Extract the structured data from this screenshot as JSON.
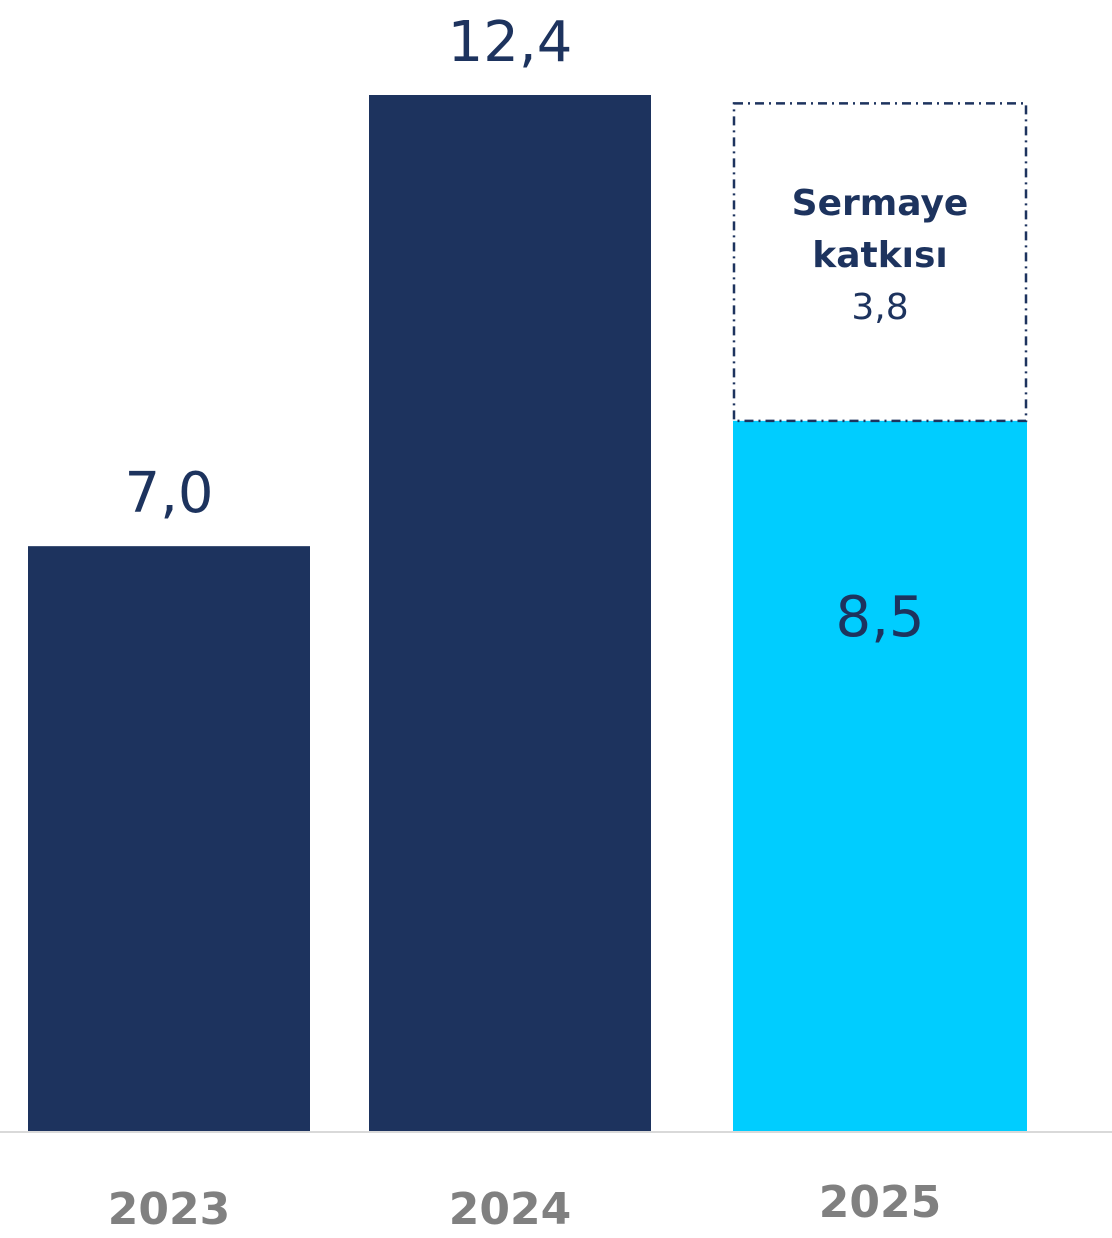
{
  "chart_data": {
    "type": "bar",
    "categories": [
      "2023",
      "2024",
      "2025"
    ],
    "values": [
      7.0,
      12.4,
      8.5
    ],
    "value_labels": [
      "7,0",
      "12,4",
      "8,5"
    ],
    "stacked_extra": {
      "category": "2025",
      "value": 3.8,
      "label_lines": [
        "Sermaye",
        "katkısı",
        "3,8"
      ]
    },
    "ylim": [
      0,
      12.4
    ],
    "grid": false,
    "colors": {
      "main_bar": "#1d335e",
      "highlight_bar": "#00cdff",
      "dashed_outline": "#1d335e",
      "value_label": "#1d335e",
      "category_label": "#808080",
      "baseline": "#d9d9d9"
    }
  }
}
